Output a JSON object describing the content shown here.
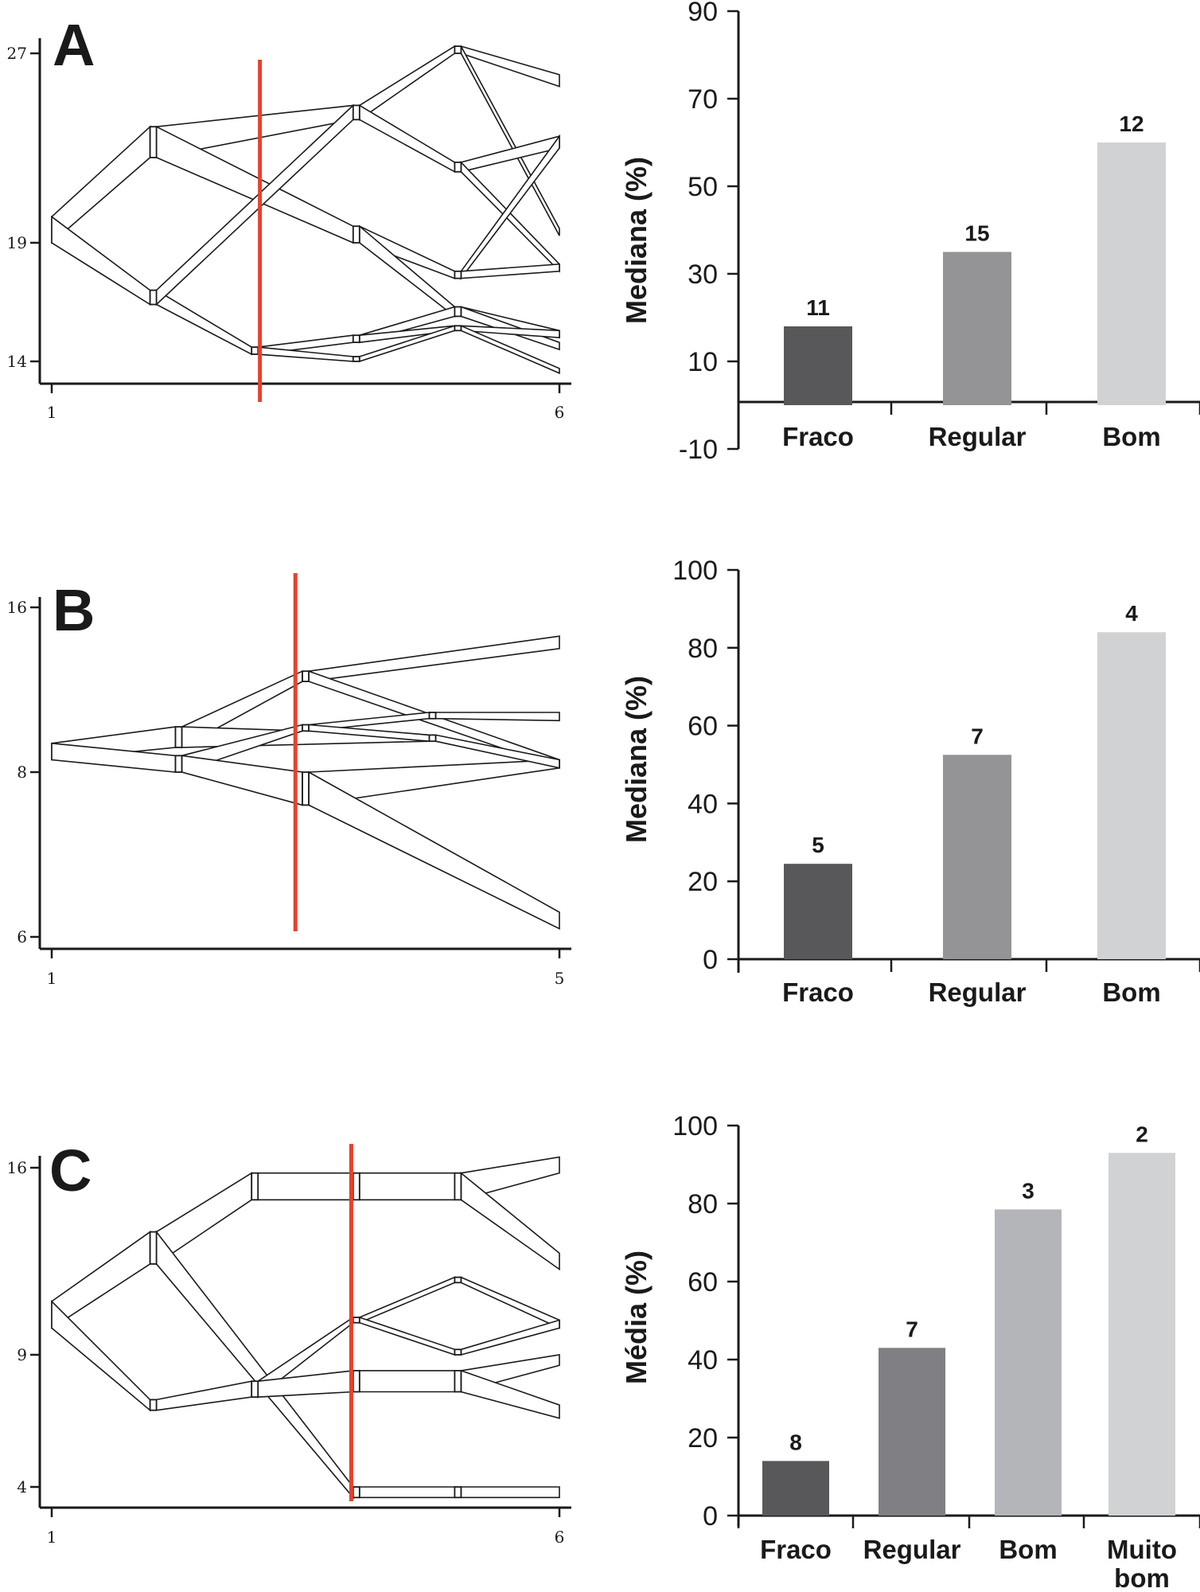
{
  "chart_data": [
    {
      "type": "line",
      "panel_label": "A",
      "x_ticks": [
        "1",
        "6"
      ],
      "y_ticks": [
        "27",
        "19",
        "14"
      ],
      "x_range": [
        1,
        6
      ],
      "split_x": 3.05,
      "nodes": [
        {
          "x": 1,
          "y": 19.0,
          "hi": 20.1
        },
        {
          "x": 2,
          "y": 22.6,
          "hi": 23.9
        },
        {
          "x": 2,
          "y": 16.4,
          "hi": 17.0
        },
        {
          "x": 3,
          "y": 14.3,
          "hi": 14.6
        },
        {
          "x": 4,
          "y": 24.2,
          "hi": 24.8
        },
        {
          "x": 4,
          "y": 19.0,
          "hi": 19.7
        },
        {
          "x": 4,
          "y": 14.8,
          "hi": 15.1
        },
        {
          "x": 4,
          "y": 14.0,
          "hi": 14.2
        },
        {
          "x": 5,
          "y": 27.0,
          "hi": 27.3
        },
        {
          "x": 5,
          "y": 22.0,
          "hi": 22.4
        },
        {
          "x": 5,
          "y": 17.5,
          "hi": 17.8
        },
        {
          "x": 5,
          "y": 15.9,
          "hi": 16.3
        },
        {
          "x": 5,
          "y": 15.3,
          "hi": 15.5
        },
        {
          "x": 6,
          "y": 25.6,
          "hi": 26.1
        },
        {
          "x": 6,
          "y": 23.0,
          "hi": 23.5
        },
        {
          "x": 6,
          "y": 19.3,
          "hi": 19.6
        },
        {
          "x": 6,
          "y": 17.8,
          "hi": 18.1
        },
        {
          "x": 6,
          "y": 15.0,
          "hi": 15.3
        },
        {
          "x": 6,
          "y": 14.5,
          "hi": 14.8
        },
        {
          "x": 6,
          "y": 13.5,
          "hi": 13.7
        }
      ],
      "edges": [
        [
          0,
          1
        ],
        [
          0,
          2
        ],
        [
          1,
          4
        ],
        [
          1,
          5
        ],
        [
          2,
          3
        ],
        [
          2,
          4
        ],
        [
          3,
          6
        ],
        [
          3,
          7
        ],
        [
          4,
          8
        ],
        [
          4,
          9
        ],
        [
          5,
          10
        ],
        [
          5,
          11
        ],
        [
          6,
          11
        ],
        [
          6,
          12
        ],
        [
          7,
          12
        ],
        [
          8,
          13
        ],
        [
          8,
          15
        ],
        [
          9,
          14
        ],
        [
          9,
          16
        ],
        [
          10,
          14
        ],
        [
          10,
          16
        ],
        [
          11,
          17
        ],
        [
          11,
          18
        ],
        [
          12,
          17
        ],
        [
          12,
          19
        ]
      ]
    },
    {
      "type": "bar",
      "panel_label": "A",
      "ylabel": "Mediana (%)",
      "categories": [
        "Fraco",
        "Regular",
        "Bom"
      ],
      "values": [
        18,
        35,
        60
      ],
      "counts": [
        "11",
        "15",
        "12"
      ],
      "colors": [
        "#58585a",
        "#949497",
        "#d1d2d4"
      ],
      "ylim": [
        -10,
        90
      ],
      "y_ticks": [
        "90",
        "70",
        "50",
        "30",
        "10",
        "-10"
      ],
      "grid": false
    },
    {
      "type": "line",
      "panel_label": "B",
      "x_ticks": [
        "1",
        "5"
      ],
      "y_ticks": [
        "16",
        "8",
        "6"
      ],
      "x_range": [
        1,
        5
      ],
      "split_x": 2.92,
      "nodes": [
        {
          "x": 1,
          "y": 8.6,
          "hi": 9.4
        },
        {
          "x": 2,
          "y": 9.2,
          "hi": 10.2
        },
        {
          "x": 2,
          "y": 8.0,
          "hi": 8.8
        },
        {
          "x": 3,
          "y": 12.4,
          "hi": 12.9
        },
        {
          "x": 3,
          "y": 10.0,
          "hi": 10.3
        },
        {
          "x": 3,
          "y": 7.6,
          "hi": 8.0
        },
        {
          "x": 4,
          "y": 10.6,
          "hi": 10.9
        },
        {
          "x": 4,
          "y": 9.5,
          "hi": 9.8
        },
        {
          "x": 5,
          "y": 14.0,
          "hi": 14.6
        },
        {
          "x": 5,
          "y": 10.5,
          "hi": 10.9
        },
        {
          "x": 5,
          "y": 8.2,
          "hi": 8.6
        },
        {
          "x": 5,
          "y": 6.1,
          "hi": 6.3
        }
      ],
      "edges": [
        [
          0,
          1
        ],
        [
          0,
          2
        ],
        [
          1,
          3
        ],
        [
          1,
          7
        ],
        [
          2,
          4
        ],
        [
          2,
          5
        ],
        [
          3,
          8
        ],
        [
          3,
          10
        ],
        [
          4,
          6
        ],
        [
          4,
          7
        ],
        [
          5,
          10
        ],
        [
          5,
          11
        ],
        [
          6,
          9
        ],
        [
          7,
          10
        ]
      ]
    },
    {
      "type": "bar",
      "panel_label": "B",
      "ylabel": "Mediana (%)",
      "categories": [
        "Fraco",
        "Regular",
        "Bom"
      ],
      "values": [
        24.5,
        52.5,
        84
      ],
      "counts": [
        "5",
        "7",
        "4"
      ],
      "colors": [
        "#58585a",
        "#949497",
        "#d1d2d4"
      ],
      "ylim": [
        0,
        100
      ],
      "y_ticks": [
        "100",
        "80",
        "60",
        "40",
        "20",
        "0"
      ],
      "grid": false
    },
    {
      "type": "line",
      "panel_label": "C",
      "x_ticks": [
        "1",
        "6"
      ],
      "y_ticks": [
        "16",
        "9",
        "4"
      ],
      "x_range": [
        1,
        6
      ],
      "split_x": 3.95,
      "nodes": [
        {
          "x": 1,
          "y": 10.0,
          "hi": 11.0
        },
        {
          "x": 2,
          "y": 12.4,
          "hi": 13.6
        },
        {
          "x": 2,
          "y": 6.9,
          "hi": 7.3
        },
        {
          "x": 3,
          "y": 14.8,
          "hi": 15.8
        },
        {
          "x": 3,
          "y": 7.4,
          "hi": 8.0
        },
        {
          "x": 4,
          "y": 14.8,
          "hi": 15.8
        },
        {
          "x": 4,
          "y": 10.2,
          "hi": 10.4
        },
        {
          "x": 4,
          "y": 7.6,
          "hi": 8.4
        },
        {
          "x": 4,
          "y": 3.6,
          "hi": 4.0
        },
        {
          "x": 5,
          "y": 14.8,
          "hi": 15.8
        },
        {
          "x": 5,
          "y": 11.7,
          "hi": 11.9
        },
        {
          "x": 5,
          "y": 9.0,
          "hi": 9.2
        },
        {
          "x": 5,
          "y": 7.6,
          "hi": 8.4
        },
        {
          "x": 5,
          "y": 3.6,
          "hi": 4.0
        },
        {
          "x": 6,
          "y": 15.8,
          "hi": 16.4
        },
        {
          "x": 6,
          "y": 12.2,
          "hi": 12.8
        },
        {
          "x": 6,
          "y": 10.0,
          "hi": 10.3
        },
        {
          "x": 6,
          "y": 8.6,
          "hi": 9.0
        },
        {
          "x": 6,
          "y": 6.6,
          "hi": 7.1
        },
        {
          "x": 6,
          "y": 3.6,
          "hi": 4.0
        }
      ],
      "edges": [
        [
          0,
          1
        ],
        [
          0,
          2
        ],
        [
          1,
          3
        ],
        [
          1,
          8
        ],
        [
          2,
          4
        ],
        [
          3,
          5
        ],
        [
          4,
          6
        ],
        [
          4,
          7
        ],
        [
          5,
          9
        ],
        [
          6,
          10
        ],
        [
          6,
          11
        ],
        [
          7,
          12
        ],
        [
          8,
          13
        ],
        [
          9,
          14
        ],
        [
          9,
          15
        ],
        [
          10,
          16
        ],
        [
          11,
          16
        ],
        [
          12,
          17
        ],
        [
          12,
          18
        ],
        [
          13,
          19
        ]
      ]
    },
    {
      "type": "bar",
      "panel_label": "C",
      "ylabel": "Média (%)",
      "categories": [
        "Fraco",
        "Regular",
        "Bom",
        "Muito bom"
      ],
      "values": [
        14,
        43,
        78.5,
        93
      ],
      "counts": [
        "8",
        "7",
        "3",
        "2"
      ],
      "colors": [
        "#58585a",
        "#808084",
        "#b4b5b8",
        "#d1d2d4"
      ],
      "ylim": [
        0,
        100
      ],
      "y_ticks": [
        "100",
        "80",
        "60",
        "40",
        "20",
        "0"
      ],
      "grid": false
    }
  ]
}
